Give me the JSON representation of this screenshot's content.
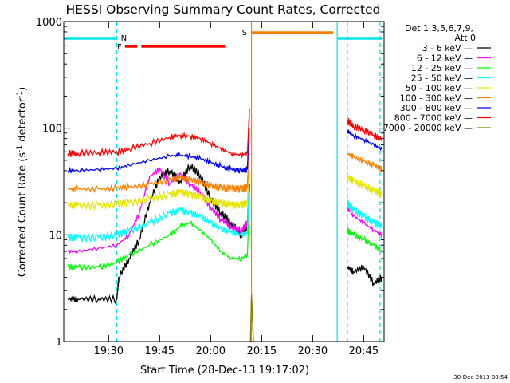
{
  "chart_data": {
    "type": "line",
    "title": "HESSI Observing Summary Count Rates, Corrected",
    "xlabel": "Start Time (28-Dec-13 19:17:02)",
    "ylabel_main": "Corrected Count Rate (s",
    "ylabel_sup1": "-1",
    "ylabel_mid": " detector",
    "ylabel_sup2": "-1",
    "ylabel_end": ")",
    "yscale": "log",
    "ylim": [
      1,
      1000
    ],
    "xlim_minutes": [
      19.28,
      20.85
    ],
    "x_ticks": [
      {
        "v": 19.5,
        "label": "19:30"
      },
      {
        "v": 19.75,
        "label": "19:45"
      },
      {
        "v": 20.0,
        "label": "20:00"
      },
      {
        "v": 20.25,
        "label": "20:15"
      },
      {
        "v": 20.5,
        "label": "20:30"
      },
      {
        "v": 20.75,
        "label": "20:45"
      }
    ],
    "y_ticks": [
      {
        "v": 1,
        "label": "1"
      },
      {
        "v": 10,
        "label": "10"
      },
      {
        "v": 100,
        "label": "100"
      },
      {
        "v": 1000,
        "label": "1000"
      }
    ],
    "legend_header": [
      "Det 1,3,5,6,7,9,",
      "Att 0"
    ],
    "footer_date": "30-Dec-2013 08:54",
    "flags": {
      "night": {
        "label": "N",
        "color": "#00e5e5",
        "segments": [
          [
            19.28,
            19.54
          ],
          [
            20.62,
            20.84
          ]
        ]
      },
      "flare": {
        "label": "F",
        "color": "#ff0000",
        "segments": [
          [
            19.58,
            19.64
          ],
          [
            19.66,
            20.07
          ]
        ]
      },
      "saa": {
        "label": "S",
        "color": "#ff8000",
        "segments": [
          [
            20.2,
            20.6
          ]
        ]
      }
    },
    "vertical_markers": [
      {
        "x": 19.54,
        "color": "#00e5e5",
        "style": "dashed"
      },
      {
        "x": 20.2,
        "color": "#ff8000",
        "style": "solid"
      },
      {
        "x": 20.62,
        "color": "#00e5e5",
        "style": "solid"
      },
      {
        "x": 20.67,
        "color": "#ff8000",
        "style": "dashed"
      },
      {
        "x": 20.83,
        "color": "#00e5e5",
        "style": "dashed"
      }
    ],
    "series": [
      {
        "name": "3 - 6 keV",
        "color": "#000000",
        "points": [
          [
            19.3,
            2.5
          ],
          [
            19.35,
            2.5
          ],
          [
            19.45,
            2.5
          ],
          [
            19.54,
            2.5
          ],
          [
            19.55,
            4
          ],
          [
            19.6,
            6
          ],
          [
            19.65,
            9
          ],
          [
            19.7,
            20
          ],
          [
            19.75,
            35
          ],
          [
            19.8,
            40
          ],
          [
            19.85,
            32
          ],
          [
            19.9,
            45
          ],
          [
            19.95,
            36
          ],
          [
            20.0,
            22
          ],
          [
            20.05,
            16
          ],
          [
            20.1,
            13
          ],
          [
            20.15,
            10
          ],
          [
            20.18,
            12
          ],
          [
            20.19,
            30
          ],
          [
            20.67,
            5
          ],
          [
            20.7,
            4.5
          ],
          [
            20.75,
            5
          ],
          [
            20.8,
            3.5
          ],
          [
            20.84,
            4
          ]
        ]
      },
      {
        "name": "6 - 12 keV",
        "color": "#ff00ff",
        "points": [
          [
            19.3,
            7
          ],
          [
            19.35,
            7
          ],
          [
            19.45,
            7.5
          ],
          [
            19.54,
            8
          ],
          [
            19.6,
            10
          ],
          [
            19.65,
            16
          ],
          [
            19.7,
            35
          ],
          [
            19.75,
            42
          ],
          [
            19.8,
            30
          ],
          [
            19.85,
            38
          ],
          [
            19.9,
            30
          ],
          [
            19.95,
            25
          ],
          [
            20.0,
            18
          ],
          [
            20.05,
            14
          ],
          [
            20.1,
            12
          ],
          [
            20.15,
            11
          ],
          [
            20.18,
            13
          ],
          [
            20.19,
            40
          ],
          [
            20.67,
            18
          ],
          [
            20.7,
            15
          ],
          [
            20.75,
            13
          ],
          [
            20.8,
            11
          ],
          [
            20.84,
            10
          ]
        ]
      },
      {
        "name": "12 - 25 keV",
        "color": "#00ff00",
        "points": [
          [
            19.3,
            5
          ],
          [
            19.35,
            5
          ],
          [
            19.45,
            5
          ],
          [
            19.54,
            5.5
          ],
          [
            19.6,
            6.5
          ],
          [
            19.7,
            8
          ],
          [
            19.8,
            10
          ],
          [
            19.85,
            12
          ],
          [
            19.9,
            13
          ],
          [
            19.95,
            11
          ],
          [
            20.0,
            9
          ],
          [
            20.05,
            7
          ],
          [
            20.1,
            6
          ],
          [
            20.15,
            6
          ],
          [
            20.18,
            6.5
          ],
          [
            20.19,
            25
          ],
          [
            20.67,
            11
          ],
          [
            20.7,
            10
          ],
          [
            20.75,
            9
          ],
          [
            20.8,
            8
          ],
          [
            20.84,
            7
          ]
        ]
      },
      {
        "name": "25 - 50 keV",
        "color": "#00ffff",
        "points": [
          [
            19.3,
            9.5
          ],
          [
            19.35,
            9.5
          ],
          [
            19.45,
            9.5
          ],
          [
            19.54,
            10
          ],
          [
            19.6,
            11
          ],
          [
            19.7,
            13
          ],
          [
            19.8,
            16
          ],
          [
            19.85,
            17
          ],
          [
            19.9,
            16
          ],
          [
            19.95,
            15
          ],
          [
            20.0,
            13
          ],
          [
            20.05,
            11.5
          ],
          [
            20.1,
            10.5
          ],
          [
            20.15,
            10
          ],
          [
            20.18,
            10.5
          ],
          [
            20.19,
            40
          ],
          [
            20.67,
            20
          ],
          [
            20.7,
            17
          ],
          [
            20.75,
            15
          ],
          [
            20.8,
            13
          ],
          [
            20.84,
            12
          ]
        ]
      },
      {
        "name": "50 - 100 keV",
        "color": "#e5e500",
        "points": [
          [
            19.3,
            19
          ],
          [
            19.35,
            19
          ],
          [
            19.45,
            19
          ],
          [
            19.54,
            19.5
          ],
          [
            19.6,
            20
          ],
          [
            19.7,
            22
          ],
          [
            19.8,
            24
          ],
          [
            19.85,
            25
          ],
          [
            19.9,
            24
          ],
          [
            19.95,
            23
          ],
          [
            20.0,
            21
          ],
          [
            20.05,
            20
          ],
          [
            20.1,
            19
          ],
          [
            20.15,
            19
          ],
          [
            20.18,
            20
          ],
          [
            20.19,
            70
          ],
          [
            20.67,
            35
          ],
          [
            20.7,
            32
          ],
          [
            20.75,
            29
          ],
          [
            20.8,
            26
          ],
          [
            20.84,
            24
          ]
        ]
      },
      {
        "name": "100 - 300 keV",
        "color": "#ff8000",
        "points": [
          [
            19.3,
            27
          ],
          [
            19.35,
            27
          ],
          [
            19.45,
            27
          ],
          [
            19.54,
            27.5
          ],
          [
            19.6,
            28
          ],
          [
            19.7,
            30
          ],
          [
            19.8,
            33
          ],
          [
            19.85,
            34
          ],
          [
            19.9,
            33
          ],
          [
            19.95,
            31
          ],
          [
            20.0,
            29
          ],
          [
            20.05,
            28
          ],
          [
            20.1,
            27
          ],
          [
            20.15,
            27
          ],
          [
            20.18,
            28
          ],
          [
            20.19,
            100
          ],
          [
            20.67,
            58
          ],
          [
            20.7,
            54
          ],
          [
            20.75,
            49
          ],
          [
            20.8,
            45
          ],
          [
            20.84,
            41
          ]
        ]
      },
      {
        "name": "300 - 800 keV",
        "color": "#0000ff",
        "points": [
          [
            19.3,
            40
          ],
          [
            19.35,
            40
          ],
          [
            19.45,
            41
          ],
          [
            19.54,
            42
          ],
          [
            19.6,
            45
          ],
          [
            19.7,
            50
          ],
          [
            19.8,
            55
          ],
          [
            19.85,
            56
          ],
          [
            19.9,
            54
          ],
          [
            19.95,
            52
          ],
          [
            20.0,
            48
          ],
          [
            20.05,
            44
          ],
          [
            20.1,
            41
          ],
          [
            20.15,
            40
          ],
          [
            20.18,
            41
          ],
          [
            20.19,
            150
          ],
          [
            20.67,
            95
          ],
          [
            20.7,
            85
          ],
          [
            20.75,
            78
          ],
          [
            20.8,
            70
          ],
          [
            20.84,
            63
          ]
        ]
      },
      {
        "name": "800 - 7000 keV",
        "color": "#ff0000",
        "points": [
          [
            19.3,
            58
          ],
          [
            19.35,
            58
          ],
          [
            19.45,
            59
          ],
          [
            19.54,
            60
          ],
          [
            19.6,
            64
          ],
          [
            19.7,
            72
          ],
          [
            19.8,
            82
          ],
          [
            19.85,
            86
          ],
          [
            19.9,
            84
          ],
          [
            19.95,
            80
          ],
          [
            20.0,
            72
          ],
          [
            20.05,
            64
          ],
          [
            20.1,
            58
          ],
          [
            20.15,
            56
          ],
          [
            20.18,
            58
          ],
          [
            20.19,
            150
          ],
          [
            20.67,
            118
          ],
          [
            20.7,
            105
          ],
          [
            20.75,
            96
          ],
          [
            20.8,
            86
          ],
          [
            20.84,
            78
          ]
        ]
      },
      {
        "name": "7000 - 20000 keV",
        "color": "#808000",
        "points": [
          [
            20.195,
            1
          ],
          [
            20.2,
            2.8
          ],
          [
            20.21,
            1
          ]
        ]
      }
    ]
  }
}
